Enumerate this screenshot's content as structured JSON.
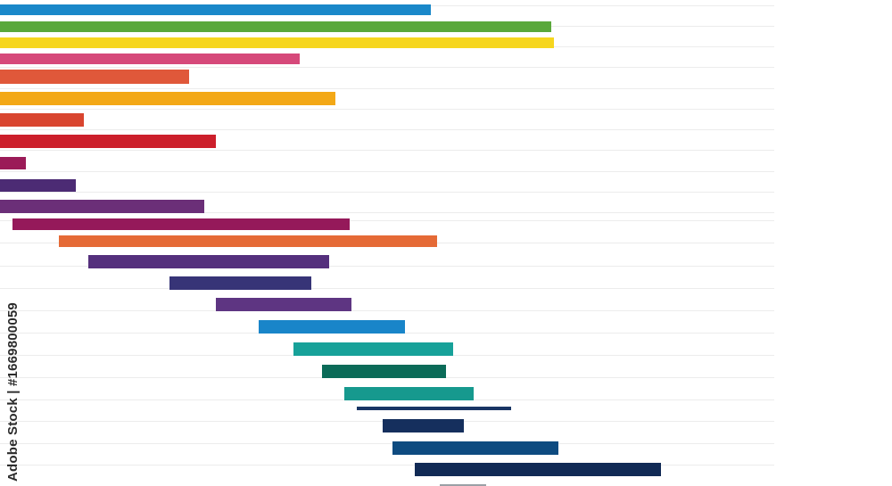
{
  "chart_data": {
    "type": "bar",
    "orientation": "horizontal",
    "variant": "gantt",
    "grid": "horizontal lines",
    "x_range": [
      0,
      1000
    ],
    "bars": [
      {
        "start": 0,
        "end": 483,
        "color": "#1a88c9"
      },
      {
        "start": 0,
        "end": 618,
        "color": "#5aa83b"
      },
      {
        "start": 0,
        "end": 621,
        "color": "#f6d61e"
      },
      {
        "start": 0,
        "end": 336,
        "color": "#d6497a"
      },
      {
        "start": 0,
        "end": 212,
        "color": "#e0583a"
      },
      {
        "start": 0,
        "end": 376,
        "color": "#f3a816"
      },
      {
        "start": 0,
        "end": 94,
        "color": "#d9452f"
      },
      {
        "start": 0,
        "end": 242,
        "color": "#cc1f2b"
      },
      {
        "start": 0,
        "end": 29,
        "color": "#9b1b58"
      },
      {
        "start": 0,
        "end": 85,
        "color": "#4c2b74"
      },
      {
        "start": 0,
        "end": 229,
        "color": "#6b2f78"
      },
      {
        "start": 14,
        "end": 392,
        "color": "#95195a"
      },
      {
        "start": 66,
        "end": 490,
        "color": "#e56a36"
      },
      {
        "start": 99,
        "end": 369,
        "color": "#55307d"
      },
      {
        "start": 190,
        "end": 349,
        "color": "#373477"
      },
      {
        "start": 242,
        "end": 394,
        "color": "#5e3582"
      },
      {
        "start": 290,
        "end": 454,
        "color": "#1985c9"
      },
      {
        "start": 329,
        "end": 508,
        "color": "#17a199"
      },
      {
        "start": 361,
        "end": 500,
        "color": "#0b6b58"
      },
      {
        "start": 386,
        "end": 531,
        "color": "#16998e"
      },
      {
        "start": 400,
        "end": 573,
        "color": "#193564"
      },
      {
        "start": 429,
        "end": 520,
        "color": "#152f5d"
      },
      {
        "start": 440,
        "end": 626,
        "color": "#0e4b80"
      },
      {
        "start": 465,
        "end": 741,
        "color": "#112a55"
      },
      {
        "start": 493,
        "end": 545,
        "color": "#9aa0a6"
      }
    ]
  },
  "watermark": {
    "side_text": "Adobe Stock | #1669800059",
    "tile_text": "Adobe Stock"
  }
}
